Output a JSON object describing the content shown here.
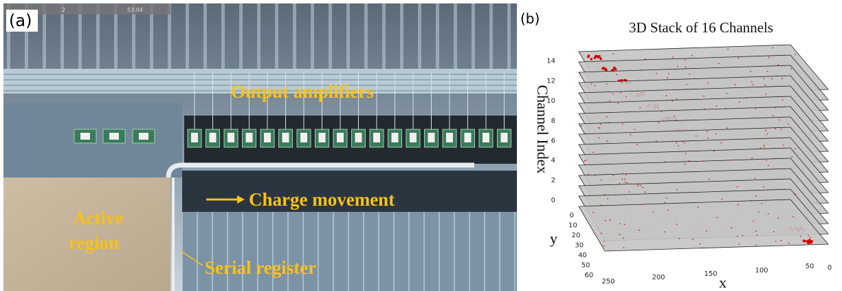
{
  "panels": [
    {
      "label": "(a)",
      "toolbar": [
        "2",
        "53.04"
      ],
      "annotations": {
        "amplifiers": "Output amplifiers",
        "charge": "Charge movement",
        "active": [
          "Active",
          "region"
        ],
        "serial": "Serial register"
      }
    },
    {
      "label": "(b)",
      "title": "3D Stack of 16 Channels",
      "z_label": "Channel Index",
      "y_label": "y",
      "x_label": "x",
      "z_ticks": [
        0,
        2,
        4,
        6,
        8,
        10,
        12,
        14
      ],
      "y_ticks": [
        0,
        10,
        20,
        30,
        40,
        50,
        60
      ],
      "x_ticks": [
        250,
        200,
        150,
        100,
        50,
        0
      ]
    }
  ]
}
